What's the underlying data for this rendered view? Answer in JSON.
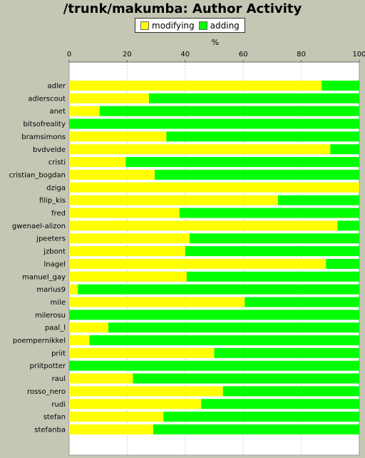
{
  "chart_data": {
    "type": "bar",
    "orientation": "horizontal",
    "stacked": true,
    "title": "/trunk/makumba: Author Activity",
    "xlabel": "%",
    "xlim": [
      0,
      100
    ],
    "xticks": [
      "0",
      "20",
      "40",
      "60",
      "80",
      "100"
    ],
    "legend_position": "top",
    "grid": true,
    "colors": {
      "modifying": "#ffff00",
      "adding": "#00ff00"
    },
    "categories": [
      "adler",
      "adlerscout",
      "anet",
      "bitsofreality",
      "bramsimons",
      "bvdvelde",
      "cristi",
      "cristian_bogdan",
      "dziga",
      "filip_kis",
      "fred",
      "gwenael-alizon",
      "jpeeters",
      "jzbont",
      "lnagel",
      "manuel_gay",
      "marius9",
      "mile",
      "milerosu",
      "paal_l",
      "poempernikkel",
      "priit",
      "priitpotter",
      "raul",
      "rosso_nero",
      "rudi",
      "stefan",
      "stefanba"
    ],
    "series": [
      {
        "name": "modifying",
        "values": [
          87,
          27.5,
          10.5,
          0,
          33.5,
          90,
          19.5,
          29.5,
          100,
          72,
          38,
          92.5,
          41.5,
          40,
          88.5,
          40.5,
          3,
          60.5,
          0,
          13.5,
          7,
          50,
          0,
          22,
          53,
          45.5,
          32.5,
          29
        ]
      },
      {
        "name": "adding",
        "values": [
          13,
          72.5,
          89.5,
          100,
          66.5,
          10,
          80.5,
          70.5,
          0,
          28,
          62,
          7.5,
          58.5,
          60,
          11.5,
          59.5,
          97,
          39.5,
          100,
          86.5,
          93,
          50,
          100,
          78,
          47,
          54.5,
          67.5,
          71
        ]
      }
    ]
  }
}
